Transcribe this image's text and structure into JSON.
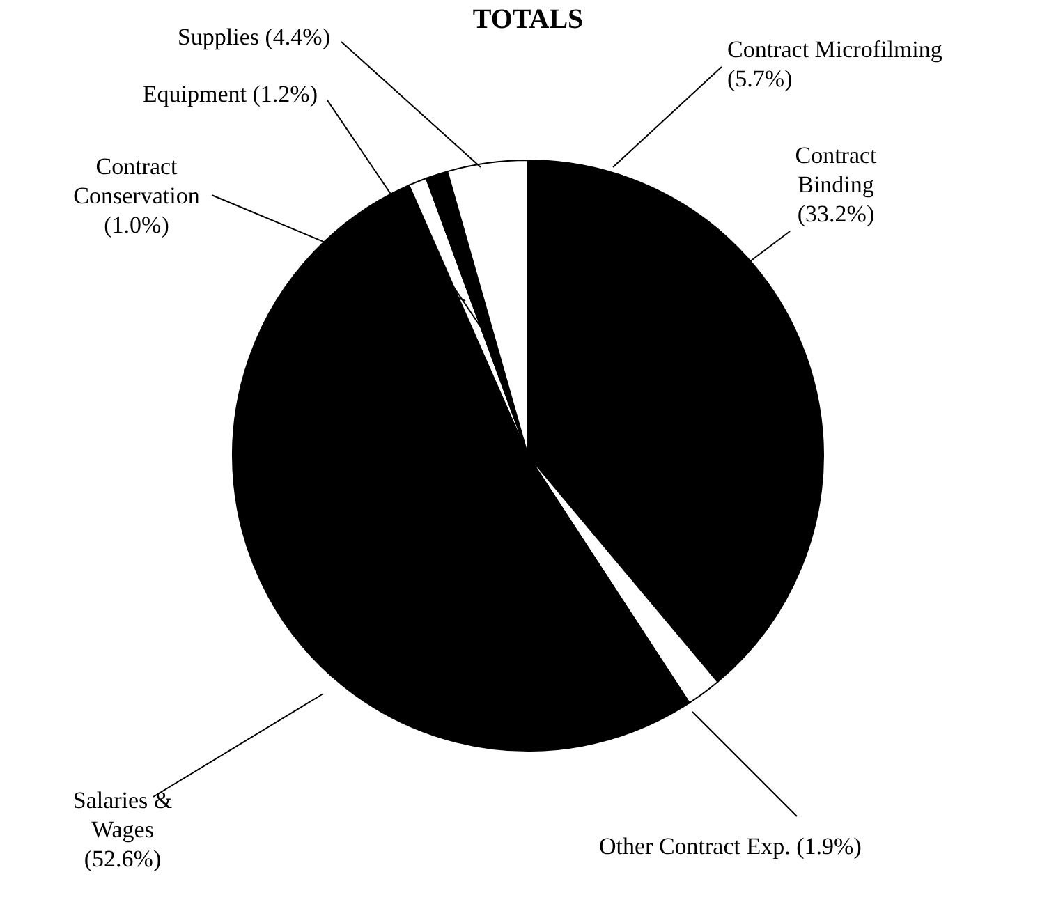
{
  "chart_data": {
    "type": "pie",
    "title": "TOTALS",
    "categories": [
      "Contract Microfilming",
      "Contract Binding",
      "Other Contract Exp.",
      "Salaries & Wages",
      "Contract Conservation",
      "Equipment",
      "Supplies"
    ],
    "values": [
      5.7,
      33.2,
      1.9,
      52.6,
      1.0,
      1.2,
      4.4
    ],
    "value_labels": [
      "(5.7%)",
      "(33.2%)",
      "(1.9%)",
      "(52.6%)",
      "(1.0%)",
      "(1.2%)",
      "(4.4%)"
    ],
    "colors": [
      "#000000",
      "#000000",
      "#ffffff",
      "#000000",
      "#ffffff",
      "#000000",
      "#ffffff"
    ]
  }
}
